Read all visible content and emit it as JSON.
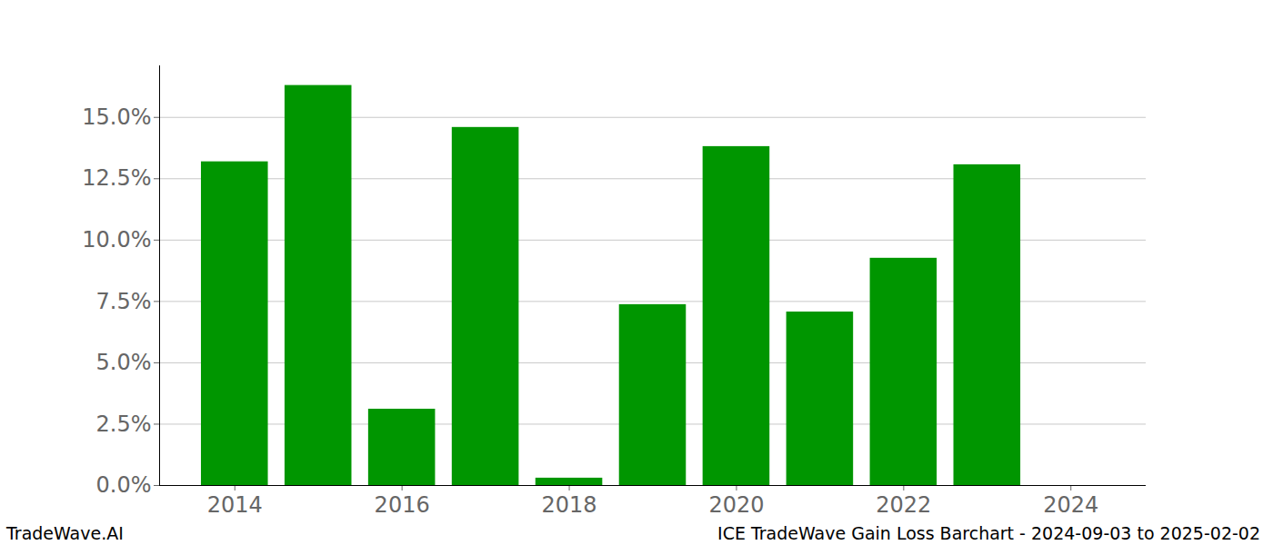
{
  "chart_data": {
    "type": "bar",
    "annotations": [
      "TradeWave.AI",
      "ICE TradeWave Gain Loss Barchart - 2024-09-03 to 2025-02-02"
    ],
    "x": [
      2014,
      2015,
      2016,
      2017,
      2018,
      2019,
      2020,
      2021,
      2022,
      2023
    ],
    "values": [
      13.19,
      16.3,
      3.11,
      14.59,
      0.3,
      7.37,
      13.81,
      7.07,
      9.26,
      13.07
    ],
    "color": "#009600",
    "xlim": [
      2013.1,
      2024.9
    ],
    "xticks": [
      2014,
      2016,
      2018,
      2020,
      2022,
      2024
    ],
    "ylim": [
      0,
      17.1
    ],
    "yticks": [
      {
        "value": 0,
        "label": "0.0%"
      },
      {
        "value": 2.5,
        "label": "2.5%"
      },
      {
        "value": 5,
        "label": "5.0%"
      },
      {
        "value": 7.5,
        "label": "7.5%"
      },
      {
        "value": 10,
        "label": "10.0%"
      },
      {
        "value": 12.5,
        "label": "12.5%"
      },
      {
        "value": 15,
        "label": "15.0%"
      }
    ],
    "grid": true
  }
}
